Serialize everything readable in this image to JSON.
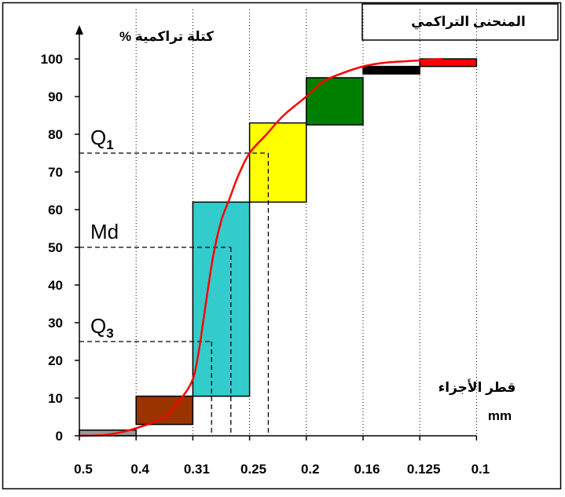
{
  "chart_data": {
    "type": "bar",
    "title": "المنحنى التراكمي",
    "ylabel": "كتلة تراكمية %",
    "xlabel": "قطر الأجزاء",
    "xunit": "mm",
    "ylim": [
      0,
      100
    ],
    "y_ticks": [
      "0",
      "10",
      "20",
      "30",
      "40",
      "50",
      "60",
      "70",
      "80",
      "90",
      "100"
    ],
    "x_ticks": [
      "0.5",
      "0.4",
      "0.31",
      "0.25",
      "0.2",
      "0.16",
      "0.125",
      "0.1"
    ],
    "bars": [
      {
        "x_from": "0.5",
        "x_to": "0.4",
        "low": 0,
        "high": 1.5,
        "color": "#999999"
      },
      {
        "x_from": "0.4",
        "x_to": "0.31",
        "low": 3,
        "high": 10.5,
        "color": "#993300"
      },
      {
        "x_from": "0.31",
        "x_to": "0.25",
        "low": 10.5,
        "high": 62,
        "color": "#33cccc"
      },
      {
        "x_from": "0.25",
        "x_to": "0.2",
        "low": 62,
        "high": 83,
        "color": "#ffff00"
      },
      {
        "x_from": "0.2",
        "x_to": "0.16",
        "low": 82.5,
        "high": 95,
        "color": "#008000"
      },
      {
        "x_from": "0.16",
        "x_to": "0.125",
        "low": 96,
        "high": 98,
        "color": "#000000"
      },
      {
        "x_from": "0.125",
        "x_to": "0.1",
        "low": 98,
        "high": 100,
        "color": "#ff0000"
      }
    ],
    "curve": {
      "color": "#ff0000",
      "points": [
        [
          0.0,
          0
        ],
        [
          0.5,
          0.3
        ],
        [
          1.0,
          2
        ],
        [
          1.5,
          5
        ],
        [
          1.8,
          10
        ],
        [
          2.0,
          15
        ],
        [
          2.1,
          22
        ],
        [
          2.2,
          32
        ],
        [
          2.35,
          47
        ],
        [
          2.5,
          57
        ],
        [
          2.65,
          63
        ],
        [
          2.8,
          69
        ],
        [
          3.0,
          75
        ],
        [
          3.3,
          80
        ],
        [
          3.6,
          85
        ],
        [
          4.0,
          90
        ],
        [
          4.3,
          94
        ],
        [
          4.6,
          96
        ],
        [
          5.0,
          98
        ],
        [
          5.4,
          99
        ],
        [
          5.9,
          99.5
        ],
        [
          6.4,
          100
        ]
      ]
    },
    "quartiles": [
      {
        "label": "Q",
        "sub": "1",
        "y": 75,
        "x_pos": 3.33
      },
      {
        "label": "Md",
        "sub": "",
        "y": 50,
        "x_pos": 2.67
      },
      {
        "label": "Q",
        "sub": "3",
        "y": 25,
        "x_pos": 2.33
      }
    ],
    "grid": {
      "vertical_dotted": true,
      "horizontal": false
    }
  }
}
